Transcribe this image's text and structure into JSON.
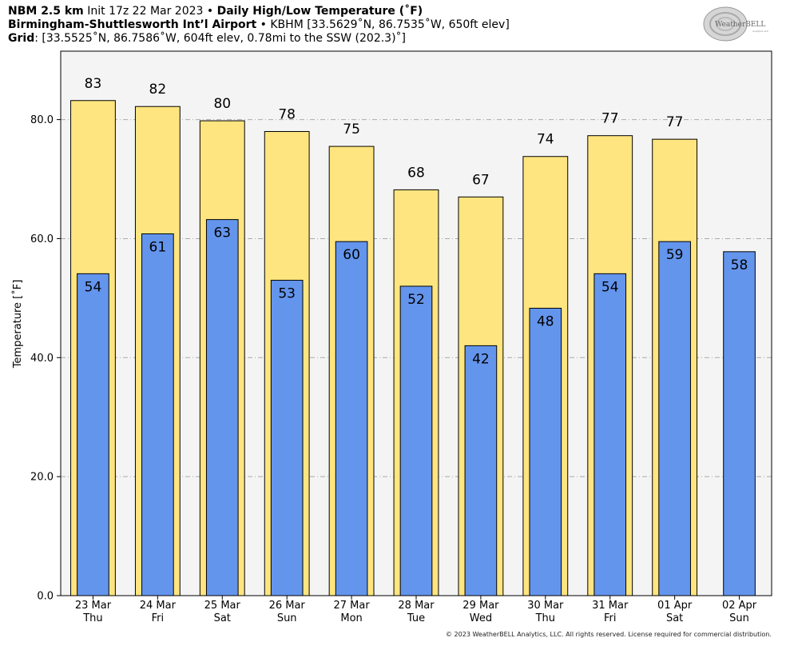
{
  "header": {
    "line1_bold1": "NBM 2.5 km",
    "line1_text1": " Init 17z 22 Mar 2023 • ",
    "line1_bold2": "Daily High/Low Temperature (˚F)",
    "line2_bold": "Birmingham-Shuttlesworth Int’l Airport",
    "line2_text": " • KBHM [33.5629˚N, 86.7535˚W, 650ft elev]",
    "line3_bold": "Grid",
    "line3_text": ": [33.5525˚N, 86.7586˚W, 604ft elev, 0.78mi to the SSW (202.3)˚]"
  },
  "logo": {
    "text_main": "WeatherBELL",
    "text_sub": "Analytics LLC"
  },
  "footer": "© 2023 WeatherBELL Analytics, LLC. All rights reserved. License required for commercial distribution.",
  "chart_data": {
    "type": "bar",
    "ylabel": "Temperature [˚F]",
    "ylim": [
      0,
      91.5
    ],
    "yticks": [
      "0.0",
      "20.0",
      "40.0",
      "60.0",
      "80.0"
    ],
    "grid": true,
    "categories": [
      {
        "date": "23 Mar",
        "day": "Thu"
      },
      {
        "date": "24 Mar",
        "day": "Fri"
      },
      {
        "date": "25 Mar",
        "day": "Sat"
      },
      {
        "date": "26 Mar",
        "day": "Sun"
      },
      {
        "date": "27 Mar",
        "day": "Mon"
      },
      {
        "date": "28 Mar",
        "day": "Tue"
      },
      {
        "date": "29 Mar",
        "day": "Wed"
      },
      {
        "date": "30 Mar",
        "day": "Thu"
      },
      {
        "date": "31 Mar",
        "day": "Fri"
      },
      {
        "date": "01 Apr",
        "day": "Sat"
      },
      {
        "date": "02 Apr",
        "day": "Sun"
      }
    ],
    "series": [
      {
        "key": "high",
        "values": [
          83.2,
          82.2,
          79.8,
          78.0,
          75.5,
          68.2,
          67.0,
          73.8,
          77.3,
          76.7,
          null
        ],
        "labels": [
          "83",
          "82",
          "80",
          "78",
          "75",
          "68",
          "67",
          "74",
          "77",
          "77",
          ""
        ],
        "color": "#FFE57F"
      },
      {
        "key": "low",
        "values": [
          54.1,
          60.8,
          63.2,
          53.0,
          59.5,
          52.0,
          42.0,
          48.3,
          54.1,
          59.5,
          57.8
        ],
        "labels": [
          "54",
          "61",
          "63",
          "53",
          "60",
          "52",
          "42",
          "48",
          "54",
          "59",
          "58"
        ],
        "color": "#6495ED"
      }
    ]
  }
}
